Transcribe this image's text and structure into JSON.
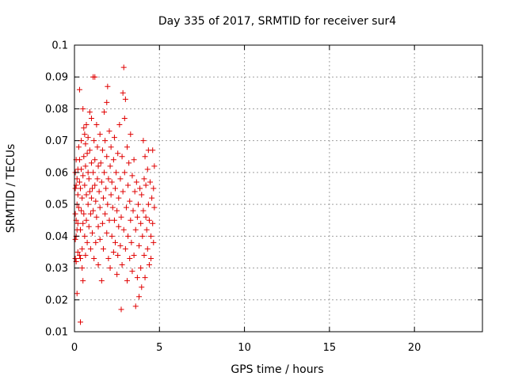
{
  "chart_data": {
    "type": "scatter",
    "title": "Day 335 of 2017, SRMTID for receiver sur4",
    "xlabel": "GPS time / hours",
    "ylabel": "SRMTID / TECUs",
    "xlim": [
      0,
      24
    ],
    "ylim": [
      0.01,
      0.1
    ],
    "x_ticks": [
      0,
      5,
      10,
      15,
      20
    ],
    "y_ticks": [
      0.01,
      0.02,
      0.03,
      0.04,
      0.05,
      0.06,
      0.07,
      0.08,
      0.09,
      0.1
    ],
    "x_tick_labels": [
      "0",
      "5",
      "10",
      "15",
      "20"
    ],
    "y_tick_labels": [
      "0.01",
      "0.02",
      "0.03",
      "0.04",
      "0.05",
      "0.06",
      "0.07",
      "0.08",
      "0.09",
      "0.1"
    ],
    "grid": true,
    "marker": "+",
    "color": "#e00000",
    "points": [
      [
        0.05,
        0.039
      ],
      [
        0.05,
        0.055
      ],
      [
        0.05,
        0.06
      ],
      [
        0.05,
        0.033
      ],
      [
        0.05,
        0.047
      ],
      [
        0.1,
        0.032
      ],
      [
        0.1,
        0.045
      ],
      [
        0.1,
        0.056
      ],
      [
        0.1,
        0.064
      ],
      [
        0.1,
        0.04
      ],
      [
        0.15,
        0.022
      ],
      [
        0.15,
        0.05
      ],
      [
        0.15,
        0.042
      ],
      [
        0.15,
        0.058
      ],
      [
        0.2,
        0.035
      ],
      [
        0.2,
        0.053
      ],
      [
        0.2,
        0.061
      ],
      [
        0.2,
        0.044
      ],
      [
        0.25,
        0.068
      ],
      [
        0.25,
        0.049
      ],
      [
        0.3,
        0.086
      ],
      [
        0.3,
        0.034
      ],
      [
        0.3,
        0.057
      ],
      [
        0.3,
        0.064
      ],
      [
        0.35,
        0.013
      ],
      [
        0.35,
        0.033
      ],
      [
        0.35,
        0.042
      ],
      [
        0.35,
        0.055
      ],
      [
        0.4,
        0.048
      ],
      [
        0.4,
        0.061
      ],
      [
        0.4,
        0.07
      ],
      [
        0.45,
        0.03
      ],
      [
        0.45,
        0.036
      ],
      [
        0.45,
        0.052
      ],
      [
        0.5,
        0.026
      ],
      [
        0.5,
        0.08
      ],
      [
        0.5,
        0.044
      ],
      [
        0.5,
        0.059
      ],
      [
        0.55,
        0.074
      ],
      [
        0.55,
        0.047
      ],
      [
        0.55,
        0.065
      ],
      [
        0.6,
        0.072
      ],
      [
        0.6,
        0.04
      ],
      [
        0.6,
        0.056
      ],
      [
        0.65,
        0.069
      ],
      [
        0.65,
        0.062
      ],
      [
        0.65,
        0.034
      ],
      [
        0.7,
        0.075
      ],
      [
        0.7,
        0.045
      ],
      [
        0.7,
        0.053
      ],
      [
        0.75,
        0.066
      ],
      [
        0.75,
        0.038
      ],
      [
        0.8,
        0.05
      ],
      [
        0.8,
        0.06
      ],
      [
        0.8,
        0.071
      ],
      [
        0.85,
        0.043
      ],
      [
        0.85,
        0.058
      ],
      [
        0.9,
        0.079
      ],
      [
        0.9,
        0.054
      ],
      [
        0.9,
        0.067
      ],
      [
        0.95,
        0.036
      ],
      [
        0.95,
        0.047
      ],
      [
        1.0,
        0.052
      ],
      [
        1.0,
        0.063
      ],
      [
        1.0,
        0.077
      ],
      [
        1.05,
        0.041
      ],
      [
        1.05,
        0.055
      ],
      [
        1.1,
        0.09
      ],
      [
        1.1,
        0.06
      ],
      [
        1.1,
        0.048
      ],
      [
        1.15,
        0.07
      ],
      [
        1.15,
        0.033
      ],
      [
        1.2,
        0.09
      ],
      [
        1.2,
        0.056
      ],
      [
        1.2,
        0.064
      ],
      [
        1.25,
        0.038
      ],
      [
        1.25,
        0.051
      ],
      [
        1.3,
        0.075
      ],
      [
        1.3,
        0.046
      ],
      [
        1.35,
        0.068
      ],
      [
        1.35,
        0.058
      ],
      [
        1.4,
        0.031
      ],
      [
        1.4,
        0.043
      ],
      [
        1.4,
        0.062
      ],
      [
        1.45,
        0.054
      ],
      [
        1.5,
        0.072
      ],
      [
        1.5,
        0.039
      ],
      [
        1.5,
        0.049
      ],
      [
        1.55,
        0.063
      ],
      [
        1.6,
        0.026
      ],
      [
        1.6,
        0.057
      ],
      [
        1.65,
        0.044
      ],
      [
        1.65,
        0.067
      ],
      [
        1.7,
        0.052
      ],
      [
        1.7,
        0.036
      ],
      [
        1.75,
        0.079
      ],
      [
        1.75,
        0.06
      ],
      [
        1.8,
        0.047
      ],
      [
        1.8,
        0.07
      ],
      [
        1.85,
        0.055
      ],
      [
        1.9,
        0.082
      ],
      [
        1.9,
        0.041
      ],
      [
        1.9,
        0.065
      ],
      [
        1.95,
        0.087
      ],
      [
        1.95,
        0.05
      ],
      [
        2.0,
        0.058
      ],
      [
        2.0,
        0.033
      ],
      [
        2.05,
        0.073
      ],
      [
        2.05,
        0.045
      ],
      [
        2.1,
        0.062
      ],
      [
        2.1,
        0.03
      ],
      [
        2.15,
        0.053
      ],
      [
        2.15,
        0.068
      ],
      [
        2.2,
        0.04
      ],
      [
        2.2,
        0.057
      ],
      [
        2.25,
        0.049
      ],
      [
        2.3,
        0.035
      ],
      [
        2.3,
        0.064
      ],
      [
        2.35,
        0.045
      ],
      [
        2.35,
        0.071
      ],
      [
        2.4,
        0.038
      ],
      [
        2.4,
        0.055
      ],
      [
        2.45,
        0.06
      ],
      [
        2.5,
        0.028
      ],
      [
        2.5,
        0.048
      ],
      [
        2.55,
        0.066
      ],
      [
        2.55,
        0.034
      ],
      [
        2.6,
        0.052
      ],
      [
        2.6,
        0.043
      ],
      [
        2.65,
        0.075
      ],
      [
        2.7,
        0.037
      ],
      [
        2.7,
        0.058
      ],
      [
        2.75,
        0.017
      ],
      [
        2.75,
        0.046
      ],
      [
        2.8,
        0.065
      ],
      [
        2.8,
        0.031
      ],
      [
        2.85,
        0.085
      ],
      [
        2.85,
        0.054
      ],
      [
        2.9,
        0.093
      ],
      [
        2.9,
        0.042
      ],
      [
        2.95,
        0.077
      ],
      [
        2.95,
        0.06
      ],
      [
        3.0,
        0.083
      ],
      [
        3.0,
        0.036
      ],
      [
        3.05,
        0.049
      ],
      [
        3.1,
        0.068
      ],
      [
        3.1,
        0.026
      ],
      [
        3.15,
        0.056
      ],
      [
        3.15,
        0.04
      ],
      [
        3.2,
        0.063
      ],
      [
        3.25,
        0.033
      ],
      [
        3.25,
        0.051
      ],
      [
        3.3,
        0.072
      ],
      [
        3.3,
        0.045
      ],
      [
        3.35,
        0.038
      ],
      [
        3.4,
        0.059
      ],
      [
        3.4,
        0.029
      ],
      [
        3.45,
        0.048
      ],
      [
        3.5,
        0.064
      ],
      [
        3.5,
        0.034
      ],
      [
        3.55,
        0.054
      ],
      [
        3.6,
        0.042
      ],
      [
        3.6,
        0.018
      ],
      [
        3.65,
        0.057
      ],
      [
        3.7,
        0.027
      ],
      [
        3.7,
        0.046
      ],
      [
        3.75,
        0.05
      ],
      [
        3.8,
        0.021
      ],
      [
        3.8,
        0.037
      ],
      [
        3.85,
        0.055
      ],
      [
        3.9,
        0.03
      ],
      [
        3.9,
        0.044
      ],
      [
        3.95,
        0.024
      ],
      [
        3.95,
        0.053
      ],
      [
        4.0,
        0.04
      ],
      [
        4.05,
        0.07
      ],
      [
        4.05,
        0.048
      ],
      [
        4.1,
        0.034
      ],
      [
        4.1,
        0.058
      ],
      [
        4.15,
        0.065
      ],
      [
        4.15,
        0.027
      ],
      [
        4.2,
        0.046
      ],
      [
        4.2,
        0.056
      ],
      [
        4.25,
        0.042
      ],
      [
        4.3,
        0.061
      ],
      [
        4.3,
        0.036
      ],
      [
        4.35,
        0.05
      ],
      [
        4.35,
        0.067
      ],
      [
        4.4,
        0.031
      ],
      [
        4.4,
        0.045
      ],
      [
        4.45,
        0.057
      ],
      [
        4.5,
        0.04
      ],
      [
        4.5,
        0.033
      ],
      [
        4.55,
        0.052
      ],
      [
        4.6,
        0.067
      ],
      [
        4.6,
        0.044
      ],
      [
        4.65,
        0.038
      ],
      [
        4.65,
        0.055
      ],
      [
        4.7,
        0.049
      ],
      [
        4.7,
        0.062
      ]
    ]
  }
}
